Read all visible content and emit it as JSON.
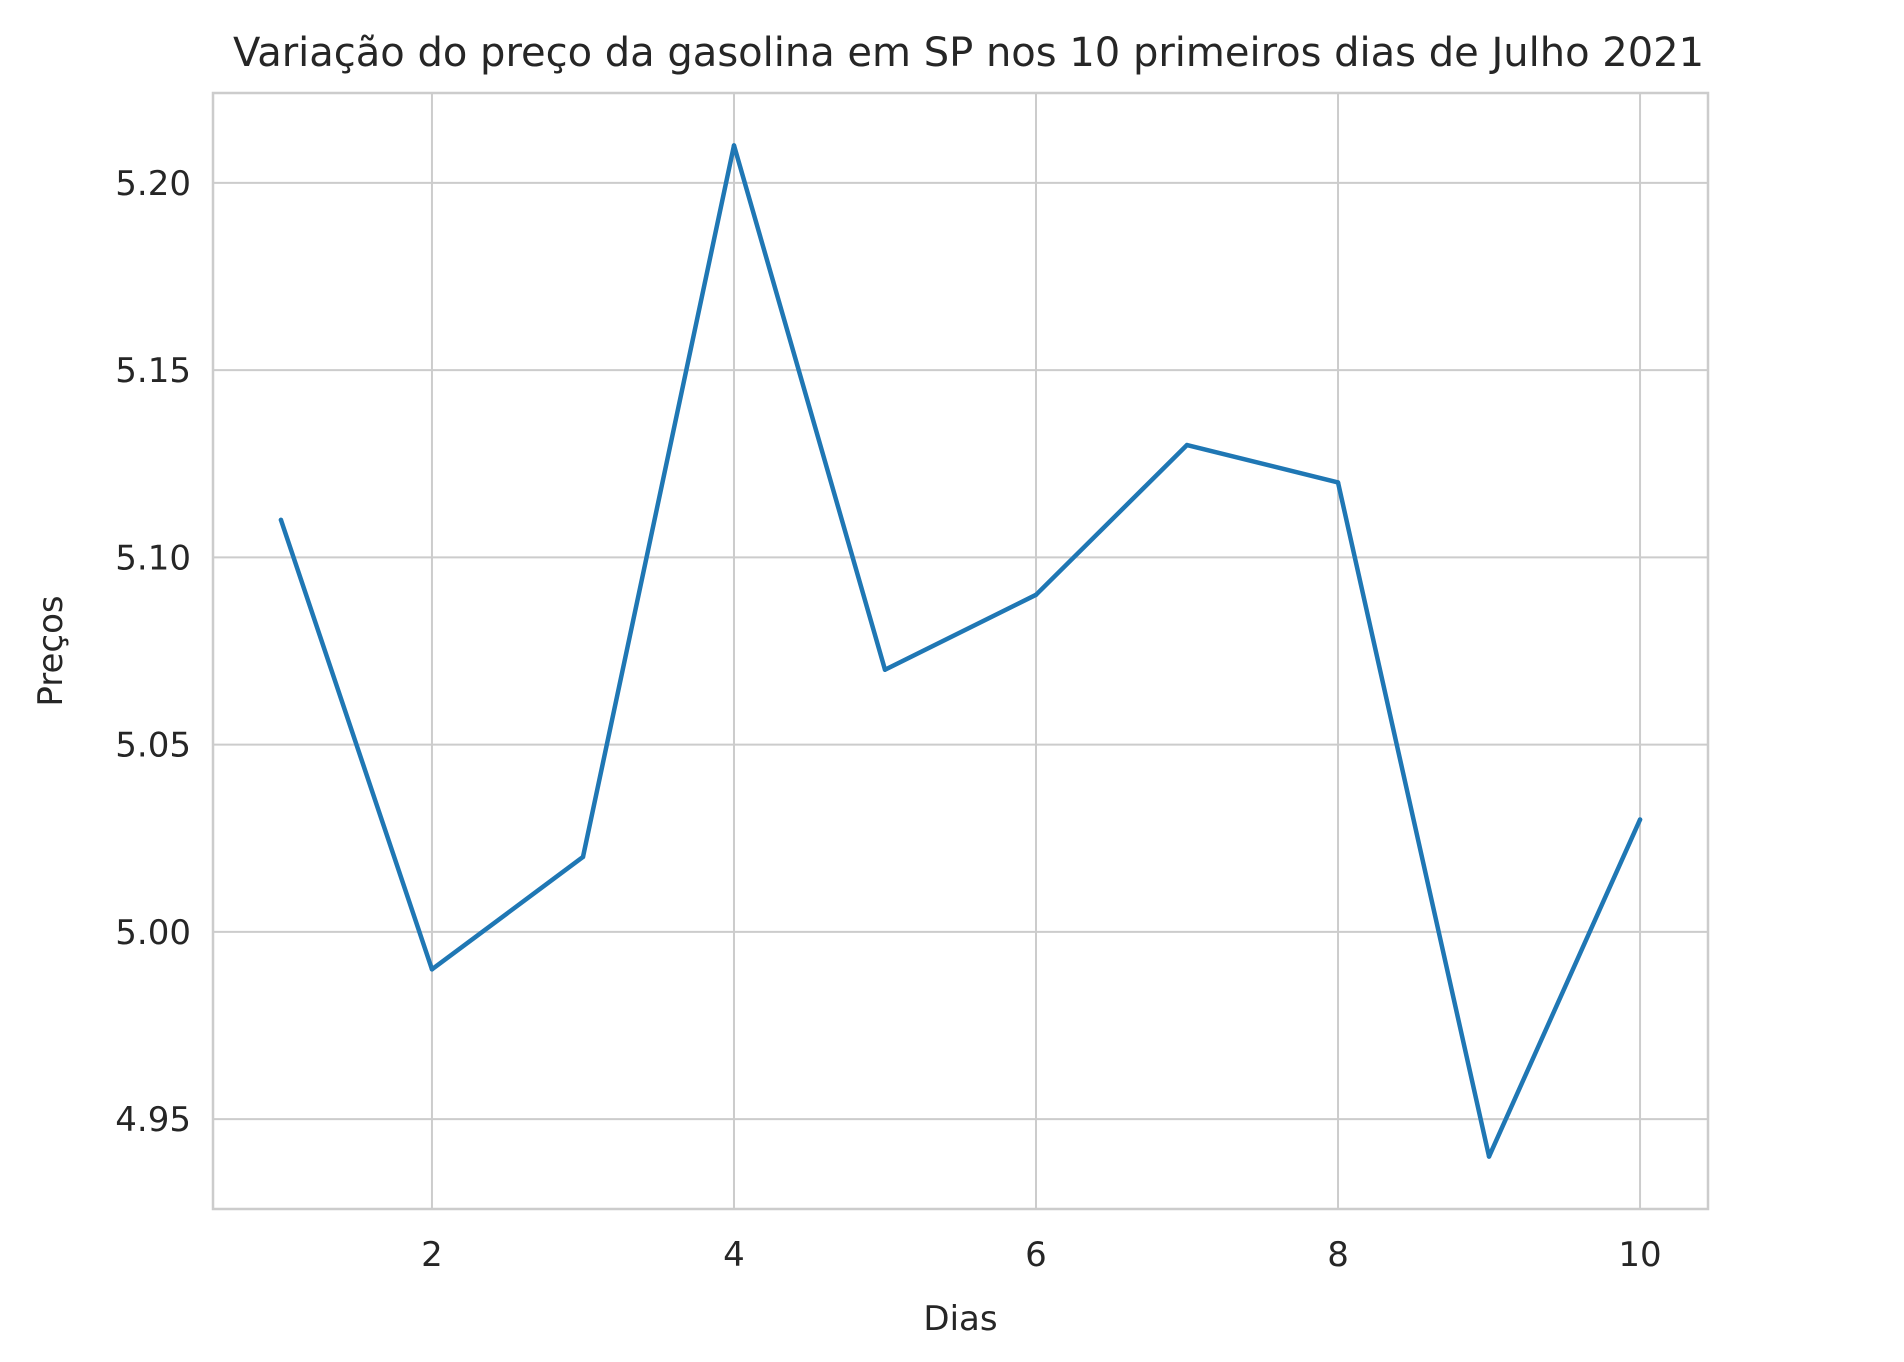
{
  "chart_data": {
    "type": "line",
    "title": "Variação do preço da gasolina em SP nos 10 primeiros dias de Julho 2021",
    "xlabel": "Dias",
    "ylabel": "Preços",
    "x": [
      1,
      2,
      3,
      4,
      5,
      6,
      7,
      8,
      9,
      10
    ],
    "series": [
      {
        "values": [
          5.11,
          4.99,
          5.02,
          5.21,
          5.07,
          5.09,
          5.13,
          5.12,
          4.94,
          5.03
        ],
        "color": "#1f77b4"
      }
    ],
    "xlim": [
      0.55,
      10.45
    ],
    "ylim": [
      4.926,
      5.224
    ],
    "xticks": [
      2,
      4,
      6,
      8,
      10
    ],
    "xtick_labels": [
      "2",
      "4",
      "6",
      "8",
      "10"
    ],
    "yticks": [
      4.95,
      5.0,
      5.05,
      5.1,
      5.15,
      5.2
    ],
    "ytick_labels": [
      "4.95",
      "5.00",
      "5.05",
      "5.10",
      "5.15",
      "5.20"
    ],
    "grid": true,
    "legend": "none",
    "colors": {
      "grid": "#cccccc",
      "text": "#262626",
      "background": "#ffffff"
    }
  }
}
